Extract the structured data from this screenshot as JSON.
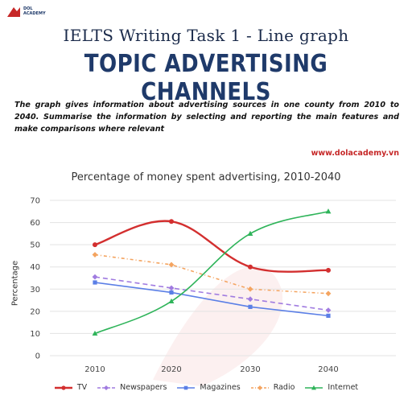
{
  "brand": {
    "name_line1": "DOL",
    "name_line2": "ACADEMY",
    "logo_icon": "dol-logo-icon"
  },
  "header": {
    "title": "IELTS Writing Task 1 - Line graph",
    "topic": "TOPIC ADVERTISING CHANNELS",
    "prompt": "The graph gives information about advertising sources in one county from 2010 to 2040. Summarise the information by selecting and reporting the main features and make comparisons where relevant",
    "website": "www.dolacademy.vn"
  },
  "chart_data": {
    "type": "line",
    "title": "Percentage of money spent advertising, 2010-2040",
    "xlabel": "",
    "ylabel": "Percentage",
    "x": [
      "2010",
      "2020",
      "2030",
      "2040"
    ],
    "ylim": [
      0,
      70
    ],
    "yticks": [
      "0",
      "10",
      "20",
      "30",
      "40",
      "50",
      "60",
      "70"
    ],
    "grid": true,
    "legend_position": "bottom",
    "series": [
      {
        "name": "TV",
        "values": [
          50,
          60.5,
          40,
          38.5
        ],
        "color": "#d32f2f",
        "style": "solid",
        "marker": "circle",
        "smooth": true
      },
      {
        "name": "Newspapers",
        "values": [
          35.5,
          30.5,
          25.5,
          20.5
        ],
        "color": "#a07be0",
        "style": "dashed",
        "marker": "diamond",
        "smooth": false
      },
      {
        "name": "Magazines",
        "values": [
          33,
          28.5,
          22,
          18
        ],
        "color": "#5b7fe6",
        "style": "solid",
        "marker": "square",
        "smooth": false
      },
      {
        "name": "Radio",
        "values": [
          45.5,
          41,
          30,
          28
        ],
        "color": "#f4a460",
        "style": "dashdot",
        "marker": "diamond",
        "smooth": false
      },
      {
        "name": "Internet",
        "values": [
          10,
          24.5,
          55,
          65
        ],
        "color": "#2fb45a",
        "style": "solid",
        "marker": "triangle",
        "smooth": true
      }
    ]
  }
}
